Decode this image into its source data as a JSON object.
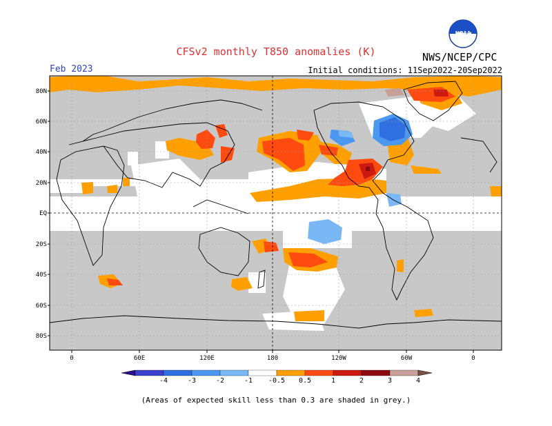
{
  "title": "CFSv2 monthly T850 anomalies (K)",
  "agency": "NWS/NCEP/CPC",
  "logo_text": "NOAA",
  "month": "Feb 2023",
  "initial_conditions": "Initial conditions: 11Sep2022-20Sep2022",
  "lat_labels": [
    "80N",
    "60N",
    "40N",
    "20N",
    "EQ",
    "20S",
    "40S",
    "60S",
    "80S"
  ],
  "lon_labels": [
    "0",
    "60E",
    "120E",
    "180",
    "120W",
    "60W",
    "0"
  ],
  "colorbar": {
    "labels": [
      "-4",
      "-3",
      "-2",
      "-1",
      "-0.5",
      "0.5",
      "1",
      "2",
      "3",
      "4"
    ],
    "colors": [
      "#2a0f8a",
      "#3b40cc",
      "#2f6fe0",
      "#4a98f0",
      "#7ab8f5",
      "#ffffff",
      "#ffa000",
      "#ff4a10",
      "#cc1a10",
      "#8a0a10",
      "#c8a098",
      "#7a5048"
    ]
  },
  "colors": {
    "skill_grey": "#c8c8c8",
    "ocean": "#ffffff",
    "title": "#e03030",
    "month": "#3040c0"
  },
  "footnote": "(Areas of expected skill less than 0.3 are shaded in grey.)"
}
